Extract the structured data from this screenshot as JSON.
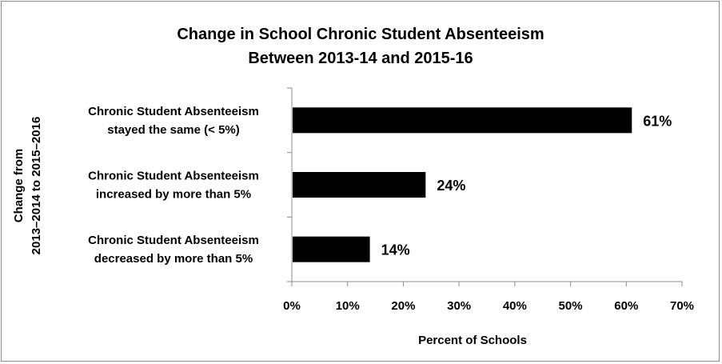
{
  "chart_data": {
    "type": "bar",
    "orientation": "horizontal",
    "title_lines": [
      "Change in School Chronic Student Absenteeism",
      "Between 2013-14 and 2015-16"
    ],
    "categories": [
      [
        "Chronic Student Absenteeism",
        "stayed the same (< 5%)"
      ],
      [
        "Chronic Student Absenteeism",
        "increased by more than 5%"
      ],
      [
        "Chronic Student Absenteeism",
        "decreased by more than 5%"
      ]
    ],
    "values": [
      61,
      24,
      14
    ],
    "data_labels": [
      "61%",
      "24%",
      "14%"
    ],
    "xlabel": "Percent of Schools",
    "ylabel_lines": [
      "Change from",
      "2013–2014  to  2015–2016"
    ],
    "xlim": [
      0,
      70
    ],
    "xticks": [
      0,
      10,
      20,
      30,
      40,
      50,
      60,
      70
    ],
    "xtick_labels": [
      "0%",
      "10%",
      "20%",
      "30%",
      "40%",
      "50%",
      "60%",
      "70%"
    ],
    "bar_color": "#000000",
    "grid": false,
    "legend": "none"
  }
}
